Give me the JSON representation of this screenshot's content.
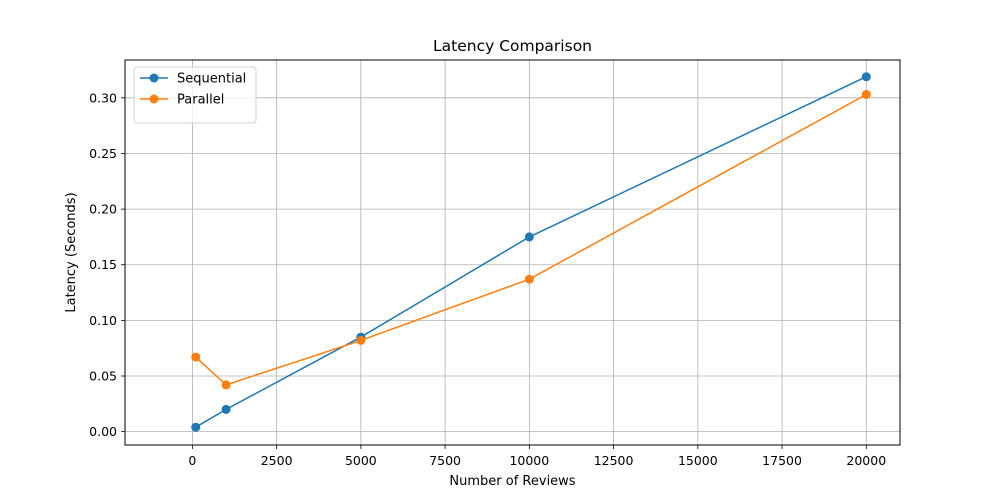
{
  "chart_data": {
    "type": "line",
    "title": "Latency Comparison",
    "xlabel": "Number of Reviews",
    "ylabel": "Latency (Seconds)",
    "xlim": [
      -2000,
      21000
    ],
    "ylim": [
      -0.012,
      0.334
    ],
    "xticks": [
      0,
      2500,
      5000,
      7500,
      10000,
      12500,
      15000,
      17500,
      20000
    ],
    "xtick_labels": [
      "0",
      "2500",
      "5000",
      "7500",
      "10000",
      "12500",
      "15000",
      "17500",
      "20000"
    ],
    "yticks": [
      0.0,
      0.05,
      0.1,
      0.15,
      0.2,
      0.25,
      0.3
    ],
    "ytick_labels": [
      "0.00",
      "0.05",
      "0.10",
      "0.15",
      "0.20",
      "0.25",
      "0.30"
    ],
    "grid": true,
    "legend_position": "upper-left",
    "x": [
      100,
      1000,
      5000,
      10000,
      20000
    ],
    "series": [
      {
        "name": "Sequential",
        "color": "#1f77b4",
        "marker": "circle",
        "values": [
          0.004,
          0.02,
          0.085,
          0.175,
          0.319
        ]
      },
      {
        "name": "Parallel",
        "color": "#ff7f0e",
        "marker": "circle",
        "values": [
          0.067,
          0.042,
          0.082,
          0.137,
          0.303
        ]
      }
    ]
  }
}
